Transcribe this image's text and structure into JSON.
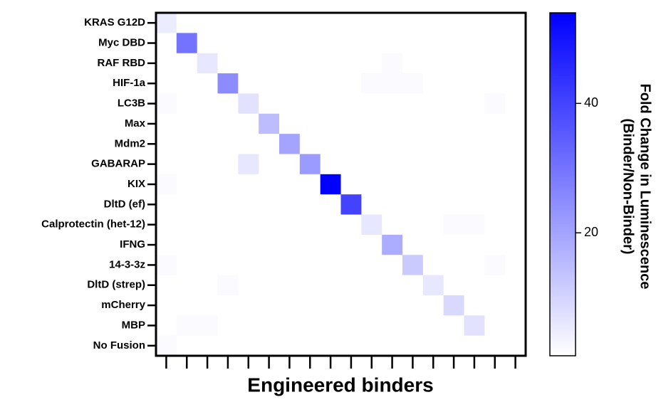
{
  "chart_data": {
    "type": "heatmap",
    "xlabel": "Engineered binders",
    "colorbar_label": [
      "Fold Change in Luminescence",
      "(Binder/Non-Binder)"
    ],
    "x_categories": [
      null,
      null,
      null,
      null,
      null,
      null,
      null,
      null,
      null,
      null,
      null,
      null,
      null,
      null,
      null,
      null,
      null,
      null
    ],
    "y_categories": [
      "KRAS G12D",
      "Myc DBD",
      "RAF RBD",
      "HIF-1a",
      "LC3B",
      "Max",
      "Mdm2",
      "GABARAP",
      "KIX",
      "DltD (ef)",
      "Calprotectin (het-12)",
      "IFNG",
      "14-3-3z",
      "DltD (strep)",
      "mCherry",
      "MBP",
      "No Fusion"
    ],
    "values": [
      [
        5,
        1,
        1,
        1,
        1,
        1,
        1,
        1,
        1,
        1,
        1,
        1,
        1,
        1,
        1,
        1,
        1,
        1
      ],
      [
        1,
        30,
        1,
        1,
        1,
        1,
        1,
        1,
        1,
        1,
        1,
        1,
        1,
        1,
        1,
        1,
        1,
        1
      ],
      [
        1,
        1,
        6,
        1,
        1,
        1,
        1,
        1,
        1,
        1,
        1,
        2,
        1,
        1,
        1,
        1,
        1,
        1
      ],
      [
        1,
        1,
        1,
        25,
        1,
        1,
        1,
        1,
        1,
        1,
        2,
        2,
        2,
        1,
        1,
        1,
        1,
        1
      ],
      [
        2,
        1,
        1,
        1,
        7,
        1,
        1,
        1,
        1,
        1,
        1,
        1,
        1,
        1,
        1,
        1,
        2,
        1
      ],
      [
        1,
        1,
        1,
        1,
        1,
        15,
        1,
        1,
        1,
        1,
        1,
        1,
        1,
        1,
        1,
        1,
        1,
        1
      ],
      [
        1,
        1,
        1,
        1,
        1,
        1,
        20,
        1,
        1,
        1,
        1,
        1,
        1,
        1,
        1,
        1,
        1,
        1
      ],
      [
        1,
        1,
        1,
        1,
        6,
        1,
        1,
        22,
        1,
        1,
        1,
        1,
        1,
        1,
        1,
        1,
        1,
        1
      ],
      [
        2,
        1,
        1,
        1,
        1,
        1,
        1,
        1,
        54,
        1,
        1,
        1,
        1,
        1,
        1,
        1,
        1,
        1
      ],
      [
        1,
        1,
        1,
        1,
        1,
        1,
        1,
        1,
        1,
        40,
        1,
        1,
        1,
        1,
        1,
        1,
        1,
        1
      ],
      [
        1,
        1,
        1,
        1,
        1,
        1,
        1,
        1,
        1,
        1,
        6,
        1,
        1,
        1,
        2,
        2,
        1,
        1
      ],
      [
        1,
        1,
        1,
        1,
        1,
        1,
        1,
        1,
        1,
        1,
        1,
        18,
        1,
        1,
        1,
        1,
        1,
        1
      ],
      [
        2,
        1,
        1,
        1,
        1,
        1,
        1,
        1,
        1,
        1,
        1,
        1,
        12,
        1,
        1,
        1,
        2,
        1
      ],
      [
        1,
        1,
        1,
        2,
        1,
        1,
        1,
        1,
        1,
        1,
        1,
        1,
        1,
        6,
        1,
        1,
        1,
        1
      ],
      [
        1,
        1,
        1,
        1,
        1,
        1,
        1,
        1,
        1,
        1,
        1,
        1,
        1,
        1,
        9,
        1,
        1,
        1
      ],
      [
        1,
        2,
        2,
        1,
        1,
        1,
        1,
        1,
        1,
        1,
        1,
        1,
        1,
        1,
        1,
        7,
        1,
        1
      ],
      [
        2,
        1,
        1,
        1,
        1,
        1,
        1,
        1,
        1,
        1,
        1,
        1,
        1,
        1,
        1,
        1,
        1,
        1
      ]
    ],
    "colormap": [
      "#ffffff",
      "#0000ff"
    ],
    "zlim": [
      1,
      54
    ],
    "zticks": [
      20,
      40
    ]
  }
}
